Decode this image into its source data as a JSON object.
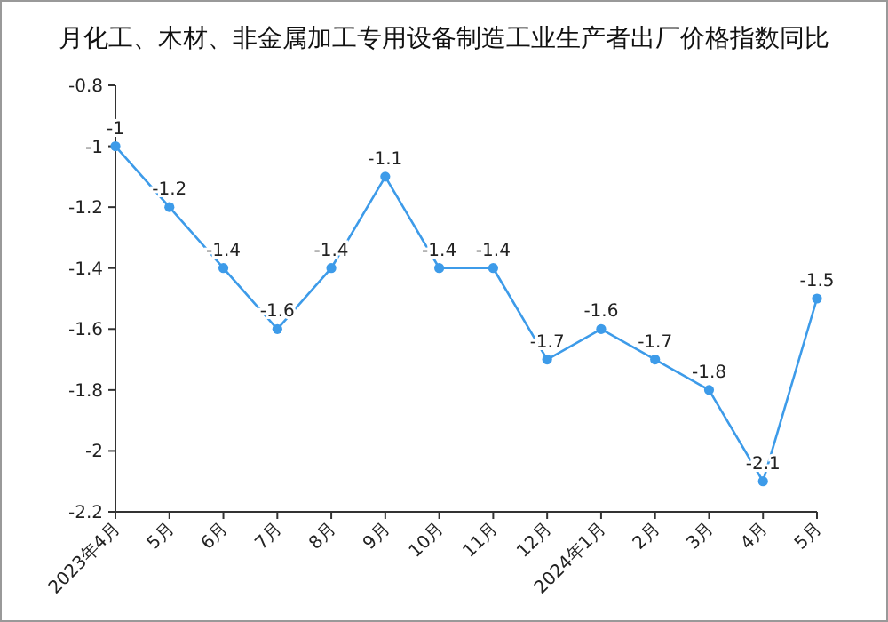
{
  "chart_data": {
    "type": "line",
    "title": "月化工、木材、非金属加工专用设备制造工业生产者出厂价格指数同比",
    "categories": [
      "2023年4月",
      "5月",
      "6月",
      "7月",
      "8月",
      "9月",
      "10月",
      "11月",
      "12月",
      "2024年1月",
      "2月",
      "3月",
      "4月",
      "5月"
    ],
    "series": [
      {
        "color": "#3d9be9",
        "values": [
          -1,
          -1.2,
          -1.4,
          -1.6,
          -1.4,
          -1.1,
          -1.4,
          -1.4,
          -1.7,
          -1.6,
          -1.7,
          -1.8,
          -2.1,
          -1.5
        ]
      }
    ],
    "ylim": [
      -2.2,
      -0.8
    ],
    "yticks": [
      -2.2,
      -2,
      -1.8,
      -1.6,
      -1.4,
      -1.2,
      -1,
      -0.8
    ],
    "data_labels": true,
    "marker": "circle",
    "grid": false
  }
}
